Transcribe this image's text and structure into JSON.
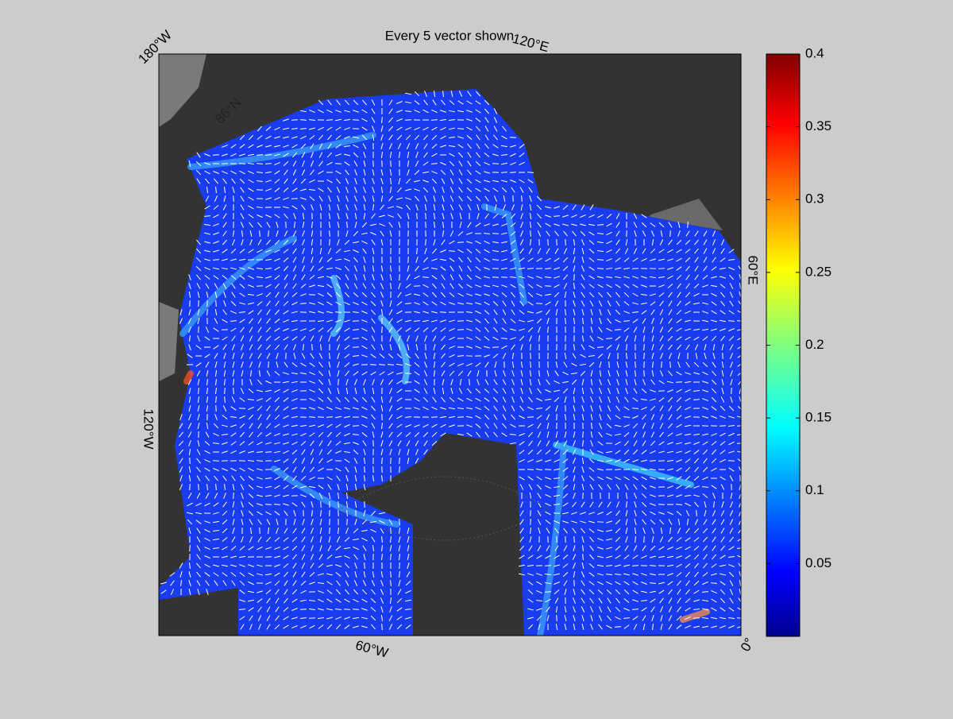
{
  "title": "Every 5 vector shown",
  "map_labels": [
    "180°W",
    "120°E",
    "60°E",
    "0°",
    "60°W",
    "120°W",
    "86°N"
  ],
  "colorbar": {
    "colormap": "jet",
    "lim": [
      0,
      0.4
    ],
    "ticks": [
      0.05,
      0.1,
      0.15,
      0.2,
      0.25,
      0.3,
      0.35,
      0.4
    ]
  }
}
